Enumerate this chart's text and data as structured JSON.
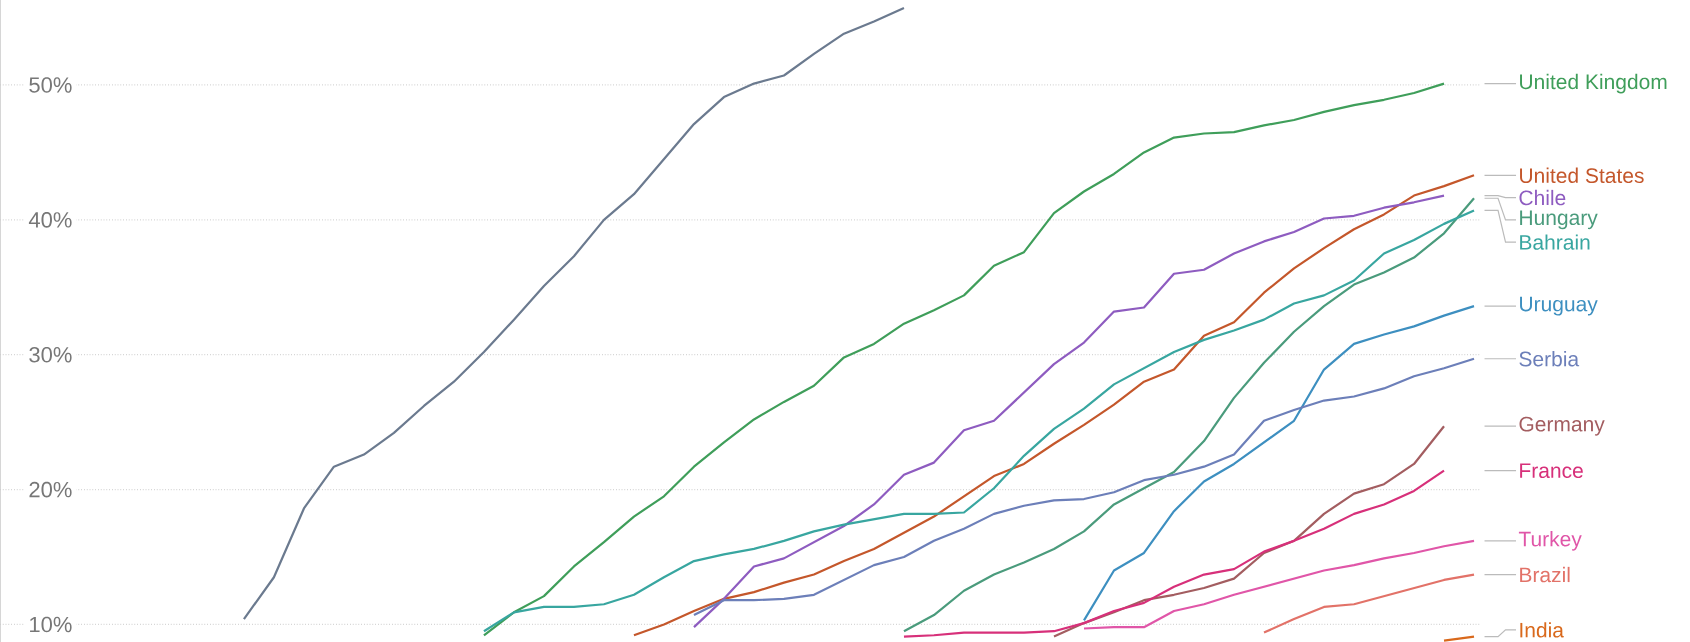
{
  "chart_data": {
    "type": "line",
    "categories": [
      null,
      null,
      null,
      null,
      null,
      null,
      null,
      null,
      null,
      null,
      null,
      null,
      null,
      null,
      null,
      null,
      null,
      null,
      null,
      null,
      null,
      null,
      null,
      null,
      null,
      null,
      null,
      null,
      null,
      null,
      null,
      null,
      null,
      null,
      null,
      null,
      null,
      null,
      null,
      null,
      null,
      null,
      null,
      null,
      null,
      null,
      null,
      null,
      null,
      null
    ],
    "ylim": [
      8.7,
      56.3
    ],
    "yticks": [
      {
        "value": 10,
        "label": "10%"
      },
      {
        "value": 20,
        "label": "20%"
      },
      {
        "value": 30,
        "label": "30%"
      },
      {
        "value": 40,
        "label": "40%"
      },
      {
        "value": 50,
        "label": "50%"
      }
    ],
    "grid": "y",
    "tick_labels": "y",
    "series": [
      {
        "color": "#6b7a8f",
        "values": [
          null,
          null,
          null,
          null,
          null,
          null,
          null,
          null,
          10.4,
          13.5,
          18.6,
          21.7,
          22.6,
          24.2,
          26.2,
          28.0,
          30.2,
          32.6,
          35.1,
          37.3,
          40.0,
          41.9,
          44.5,
          47.1,
          49.1,
          50.1,
          50.7,
          52.3,
          53.8,
          54.7,
          55.7,
          null,
          null,
          null,
          null,
          null,
          null,
          null,
          null,
          null,
          null,
          null,
          null,
          null,
          null,
          null,
          null,
          null,
          null,
          null
        ]
      },
      {
        "name": "United Kingdom",
        "color": "#3f9e5a",
        "values": [
          null,
          null,
          null,
          null,
          null,
          null,
          null,
          null,
          null,
          null,
          null,
          null,
          null,
          null,
          null,
          null,
          9.2,
          10.9,
          12.1,
          14.3,
          16.1,
          18.0,
          19.5,
          21.7,
          23.5,
          25.2,
          26.5,
          27.7,
          29.8,
          30.8,
          32.3,
          33.3,
          34.4,
          36.6,
          37.6,
          40.5,
          42.1,
          43.4,
          45.0,
          46.1,
          46.4,
          46.5,
          47.0,
          47.4,
          48.0,
          48.5,
          48.9,
          49.4,
          50.1,
          null
        ]
      },
      {
        "name": "United States",
        "color": "#c4572b",
        "values": [
          null,
          null,
          null,
          null,
          null,
          null,
          null,
          null,
          null,
          null,
          null,
          null,
          null,
          null,
          null,
          null,
          null,
          null,
          null,
          null,
          null,
          9.2,
          10.0,
          11.0,
          11.9,
          12.4,
          13.1,
          13.7,
          14.7,
          15.6,
          16.8,
          18.0,
          19.5,
          21.0,
          21.9,
          23.4,
          24.8,
          26.3,
          28.0,
          28.9,
          31.4,
          32.4,
          34.6,
          36.4,
          37.9,
          39.3,
          40.4,
          41.8,
          42.5,
          43.3
        ]
      },
      {
        "name": "Chile",
        "color": "#8e5cc0",
        "values": [
          null,
          null,
          null,
          null,
          null,
          null,
          null,
          null,
          null,
          null,
          null,
          null,
          null,
          null,
          null,
          null,
          null,
          null,
          null,
          null,
          null,
          null,
          null,
          9.8,
          11.9,
          14.3,
          14.9,
          16.1,
          17.3,
          18.9,
          21.1,
          22.0,
          24.4,
          25.1,
          27.2,
          29.3,
          30.9,
          33.2,
          33.5,
          36.0,
          36.3,
          37.5,
          38.4,
          39.1,
          40.1,
          40.3,
          40.9,
          41.3,
          41.8,
          null
        ]
      },
      {
        "name": "Hungary",
        "color": "#4a9b7c",
        "values": [
          null,
          null,
          null,
          null,
          null,
          null,
          null,
          null,
          null,
          null,
          null,
          null,
          null,
          null,
          null,
          null,
          null,
          null,
          null,
          null,
          null,
          null,
          null,
          null,
          null,
          null,
          null,
          null,
          null,
          null,
          9.5,
          10.7,
          12.5,
          13.7,
          14.6,
          15.6,
          16.9,
          18.9,
          20.1,
          21.3,
          23.6,
          26.8,
          29.4,
          31.7,
          33.6,
          35.2,
          36.1,
          37.2,
          39.0,
          41.6
        ]
      },
      {
        "name": "Bahrain",
        "color": "#38a6a0",
        "values": [
          null,
          null,
          null,
          null,
          null,
          null,
          null,
          null,
          null,
          null,
          null,
          null,
          null,
          null,
          null,
          null,
          9.5,
          10.9,
          11.3,
          11.3,
          11.5,
          12.2,
          13.5,
          14.7,
          15.2,
          15.6,
          16.2,
          16.9,
          17.4,
          17.8,
          18.2,
          18.2,
          18.3,
          20.1,
          22.5,
          24.5,
          26.0,
          27.8,
          29.0,
          30.2,
          31.1,
          31.8,
          32.6,
          33.8,
          34.4,
          35.5,
          37.5,
          38.5,
          39.7,
          40.7
        ]
      },
      {
        "name": "Uruguay",
        "color": "#3d8fc0",
        "values": [
          null,
          null,
          null,
          null,
          null,
          null,
          null,
          null,
          null,
          null,
          null,
          null,
          null,
          null,
          null,
          null,
          null,
          null,
          null,
          null,
          null,
          null,
          null,
          null,
          null,
          null,
          null,
          null,
          null,
          null,
          null,
          null,
          null,
          null,
          null,
          null,
          10.3,
          14.0,
          15.3,
          18.4,
          20.6,
          21.9,
          23.5,
          25.1,
          28.9,
          30.8,
          31.5,
          32.1,
          32.9,
          33.6
        ]
      },
      {
        "name": "Serbia",
        "color": "#6c7fb9",
        "values": [
          null,
          null,
          null,
          null,
          null,
          null,
          null,
          null,
          null,
          null,
          null,
          null,
          null,
          null,
          null,
          null,
          null,
          null,
          null,
          null,
          null,
          null,
          null,
          10.7,
          11.8,
          11.8,
          11.9,
          12.2,
          13.3,
          14.4,
          15.0,
          16.2,
          17.1,
          18.2,
          18.8,
          19.2,
          19.3,
          19.8,
          20.7,
          21.1,
          21.7,
          22.6,
          25.1,
          25.9,
          26.6,
          26.9,
          27.5,
          28.4,
          29.0,
          29.7
        ]
      },
      {
        "name": "Germany",
        "color": "#a35d60",
        "values": [
          null,
          null,
          null,
          null,
          null,
          null,
          null,
          null,
          null,
          null,
          null,
          null,
          null,
          null,
          null,
          null,
          null,
          null,
          null,
          null,
          null,
          null,
          null,
          null,
          null,
          null,
          null,
          null,
          null,
          null,
          null,
          null,
          null,
          null,
          null,
          9.1,
          10.1,
          10.9,
          11.8,
          12.2,
          12.7,
          13.4,
          15.3,
          16.2,
          18.2,
          19.7,
          20.4,
          21.9,
          24.7,
          null
        ]
      },
      {
        "name": "France",
        "color": "#d7307a",
        "values": [
          null,
          null,
          null,
          null,
          null,
          null,
          null,
          null,
          null,
          null,
          null,
          null,
          null,
          null,
          null,
          null,
          null,
          null,
          null,
          null,
          null,
          null,
          null,
          null,
          null,
          null,
          null,
          null,
          null,
          null,
          9.1,
          9.2,
          9.4,
          9.4,
          9.4,
          9.5,
          10.1,
          11.0,
          11.6,
          12.8,
          13.7,
          14.1,
          15.4,
          16.2,
          17.1,
          18.2,
          18.9,
          19.9,
          21.4,
          null
        ]
      },
      {
        "name": "Turkey",
        "color": "#e056a8",
        "values": [
          null,
          null,
          null,
          null,
          null,
          null,
          null,
          null,
          null,
          null,
          null,
          null,
          null,
          null,
          null,
          null,
          null,
          null,
          null,
          null,
          null,
          null,
          null,
          null,
          null,
          null,
          null,
          null,
          null,
          null,
          null,
          null,
          null,
          null,
          null,
          null,
          9.7,
          9.8,
          9.8,
          11.0,
          11.5,
          12.2,
          12.8,
          13.4,
          14.0,
          14.4,
          14.9,
          15.3,
          15.8,
          16.2
        ]
      },
      {
        "name": "Brazil",
        "color": "#e27268",
        "values": [
          null,
          null,
          null,
          null,
          null,
          null,
          null,
          null,
          null,
          null,
          null,
          null,
          null,
          null,
          null,
          null,
          null,
          null,
          null,
          null,
          null,
          null,
          null,
          null,
          null,
          null,
          null,
          null,
          null,
          null,
          null,
          null,
          null,
          null,
          null,
          null,
          null,
          null,
          null,
          null,
          null,
          null,
          9.4,
          10.4,
          11.3,
          11.5,
          12.1,
          12.7,
          13.3,
          13.7
        ]
      },
      {
        "name": "India",
        "color": "#d9691c",
        "values": [
          null,
          null,
          null,
          null,
          null,
          null,
          null,
          null,
          null,
          null,
          null,
          null,
          null,
          null,
          null,
          null,
          null,
          null,
          null,
          null,
          null,
          null,
          null,
          null,
          null,
          null,
          null,
          null,
          null,
          null,
          null,
          null,
          null,
          null,
          null,
          null,
          null,
          null,
          null,
          null,
          null,
          null,
          null,
          null,
          null,
          null,
          null,
          null,
          8.8,
          9.1
        ]
      }
    ]
  }
}
